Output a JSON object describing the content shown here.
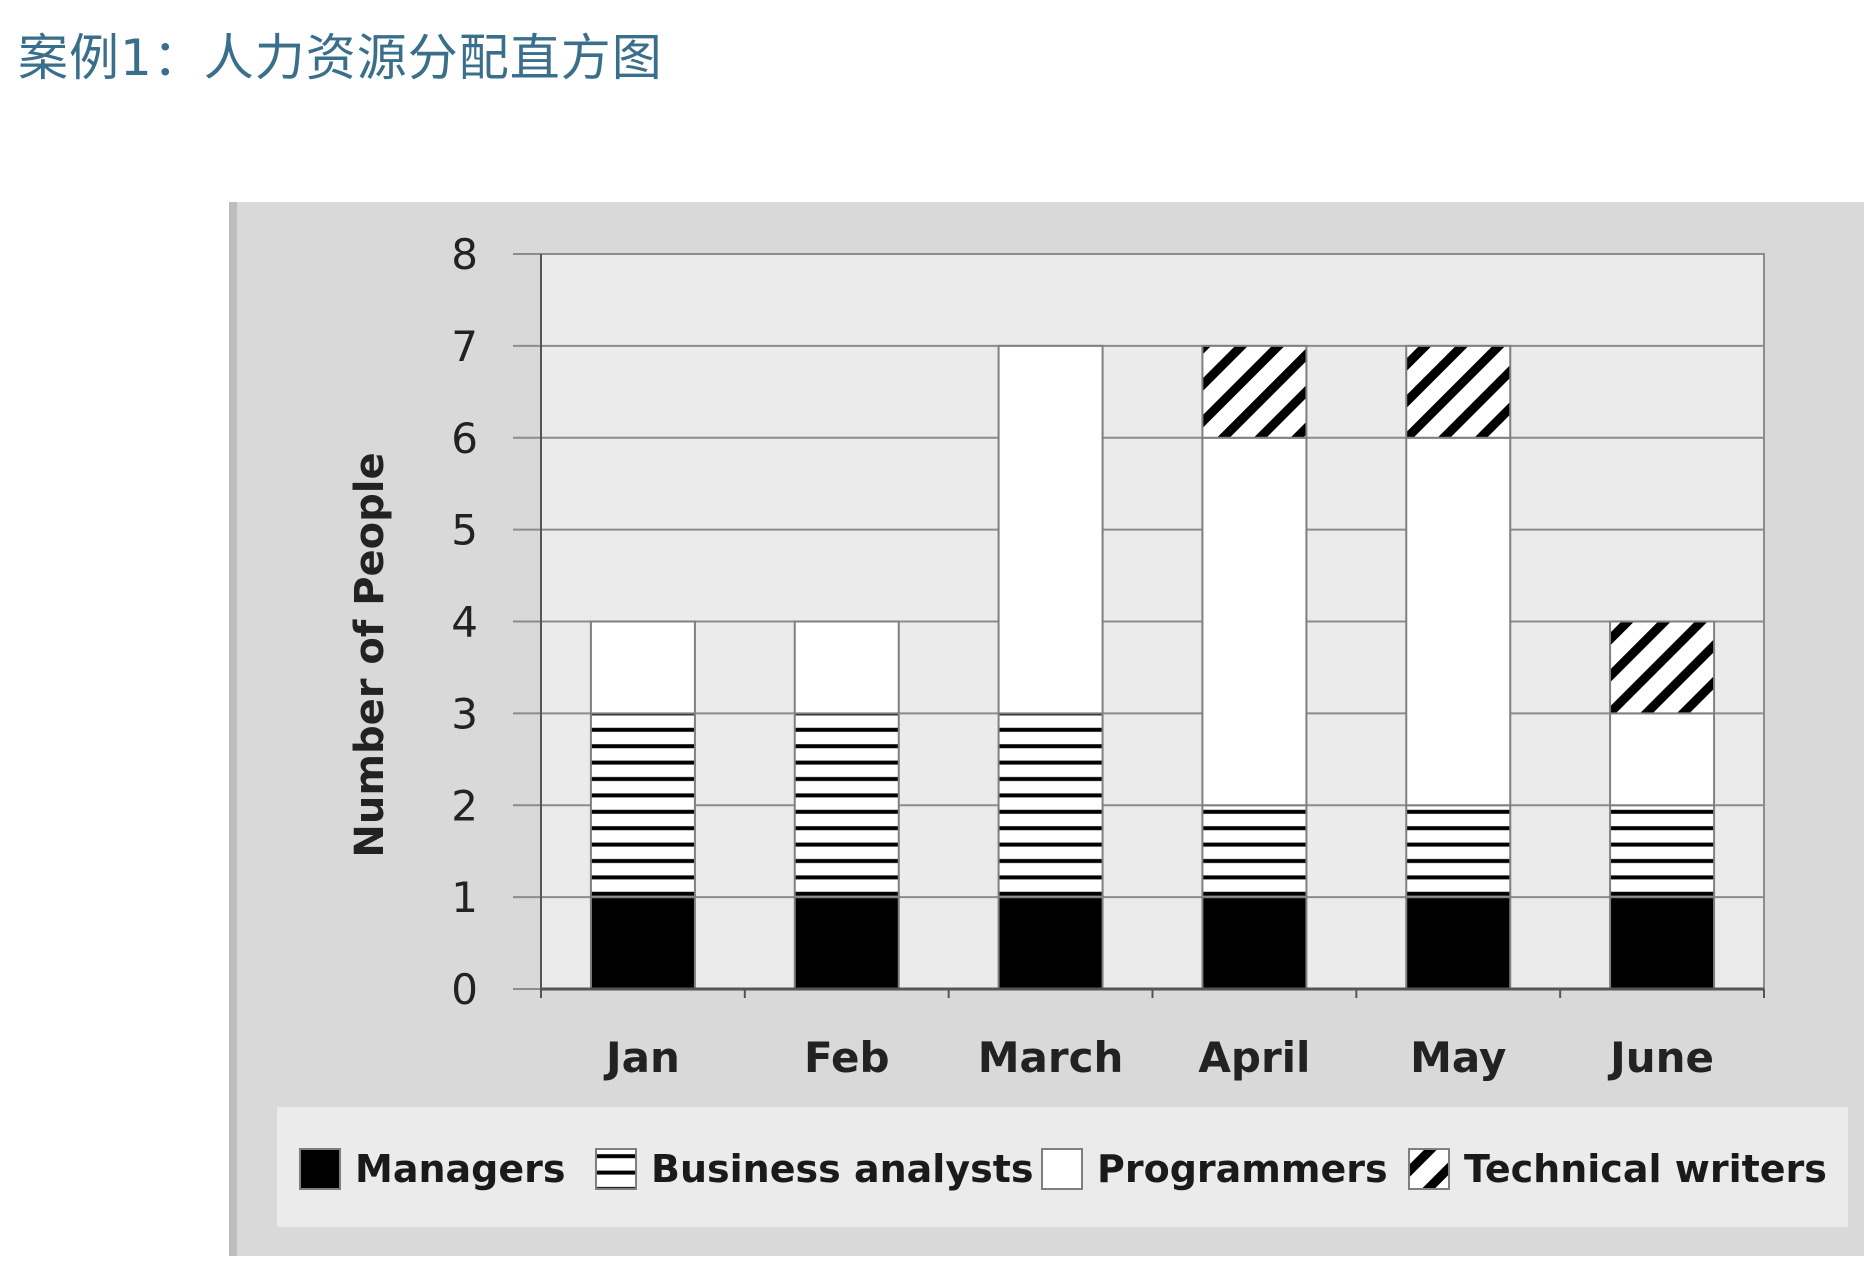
{
  "page": {
    "title": "案例1：人力资源分配直方图"
  },
  "chart_data": {
    "type": "bar",
    "stacked": true,
    "categories": [
      "Jan",
      "Feb",
      "March",
      "April",
      "May",
      "June"
    ],
    "ylabel": "Number of People",
    "xlabel": "",
    "ylim": [
      0,
      8
    ],
    "yticks": [
      "0",
      "1",
      "2",
      "3",
      "4",
      "5",
      "6",
      "7",
      "8"
    ],
    "grid": true,
    "legend_position": "bottom",
    "series": [
      {
        "name": "Managers",
        "values": [
          1,
          1,
          1,
          1,
          1,
          1
        ],
        "pattern": "solid-black"
      },
      {
        "name": "Business analysts",
        "values": [
          2,
          2,
          2,
          1,
          1,
          1
        ],
        "pattern": "horizontal-stripes"
      },
      {
        "name": "Programmers",
        "values": [
          1,
          1,
          4,
          4,
          4,
          1
        ],
        "pattern": "white"
      },
      {
        "name": "Technical writers",
        "values": [
          0,
          0,
          0,
          1,
          1,
          1
        ],
        "pattern": "diagonal-stripes"
      }
    ],
    "colors": {
      "plot_background": "#ebebeb",
      "panel_background": "#d9d9d9",
      "legend_background": "#ebebeb",
      "gridline": "#8c8c8c",
      "bar_outline": "#7f7f7f",
      "black": "#000000",
      "white": "#ffffff"
    }
  }
}
